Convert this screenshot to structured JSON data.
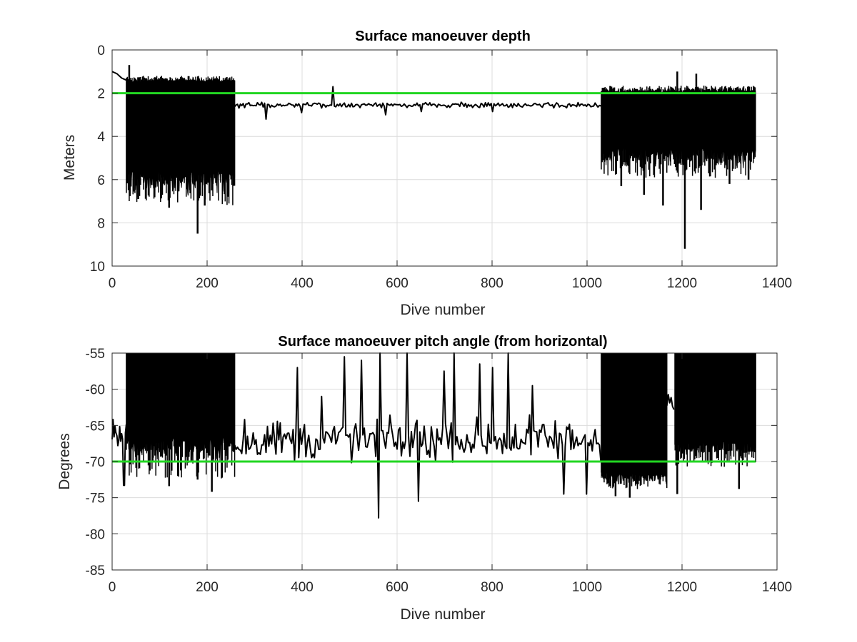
{
  "chart_data": [
    {
      "type": "line",
      "title": "Surface manoeuver depth",
      "xlabel": "Dive number",
      "ylabel": "Meters",
      "xlim": [
        0,
        1400
      ],
      "ylim": [
        0,
        10
      ],
      "y_reversed": true,
      "grid": true,
      "xticks": [
        "0",
        "200",
        "400",
        "600",
        "800",
        "1000",
        "1200",
        "1400"
      ],
      "yticks": [
        "0",
        "2",
        "4",
        "6",
        "8",
        "10"
      ],
      "reference_line": {
        "y": 2,
        "color": "#22d622"
      },
      "series_color": "#000000",
      "segments": [
        {
          "type": "smooth",
          "x": [
            0,
            10,
            20,
            30
          ],
          "y": [
            1.0,
            1.1,
            1.3,
            1.4
          ]
        },
        {
          "type": "band",
          "x_start": 30,
          "x_end": 258,
          "top": 1.5,
          "bottom": 5.5,
          "top_noise": 0.3,
          "bottom_noise": 1.3,
          "spikes": [
            [
              36,
              0.7
            ],
            [
              55,
              6.9
            ],
            [
              120,
              7.3
            ],
            [
              180,
              8.5
            ],
            [
              195,
              7.2
            ],
            [
              210,
              6.5
            ],
            [
              240,
              5.9
            ]
          ]
        },
        {
          "type": "noisy",
          "x_start": 258,
          "x_end": 1030,
          "level": 2.55,
          "noise": 0.18,
          "step": 3,
          "spikes": [
            [
              325,
              3.2
            ],
            [
              400,
              2.9
            ],
            [
              465,
              1.7
            ],
            [
              575,
              3.0
            ],
            [
              650,
              2.85
            ],
            [
              800,
              2.85
            ]
          ]
        },
        {
          "type": "band",
          "x_start": 1030,
          "x_end": 1355,
          "top": 2.0,
          "bottom": 4.5,
          "top_noise": 0.35,
          "bottom_noise": 1.1,
          "spikes": [
            [
              1072,
              6.3
            ],
            [
              1120,
              6.7
            ],
            [
              1160,
              7.2
            ],
            [
              1190,
              1.0
            ],
            [
              1206,
              9.2
            ],
            [
              1230,
              1.1
            ],
            [
              1240,
              7.4
            ],
            [
              1300,
              6.2
            ],
            [
              1340,
              6.0
            ]
          ]
        }
      ]
    },
    {
      "type": "line",
      "title": "Surface manoeuver pitch angle (from horizontal)",
      "xlabel": "Dive number",
      "ylabel": "Degrees",
      "xlim": [
        0,
        1400
      ],
      "ylim": [
        -85,
        -55
      ],
      "grid": true,
      "xticks": [
        "0",
        "200",
        "400",
        "600",
        "800",
        "1000",
        "1200",
        "1400"
      ],
      "yticks": [
        "-55",
        "-60",
        "-65",
        "-70",
        "-75",
        "-80",
        "-85"
      ],
      "reference_line": {
        "y": -70,
        "color": "#22d622"
      },
      "series_color": "#000000",
      "segments": [
        {
          "type": "noisy",
          "x_start": 0,
          "x_end": 30,
          "level": -66.0,
          "noise": 3.5,
          "step": 2,
          "spikes": [
            [
              25,
              -73.3
            ]
          ]
        },
        {
          "type": "band",
          "x_start": 30,
          "x_end": 258,
          "top": -55,
          "bottom": -66.5,
          "top_noise": 0.0,
          "bottom_noise": 4.5,
          "spikes": [
            [
              120,
              -73.4
            ],
            [
              180,
              -72.5
            ],
            [
              210,
              -74.2
            ]
          ]
        },
        {
          "type": "noisy",
          "x_start": 258,
          "x_end": 1030,
          "level": -67.0,
          "noise": 4.2,
          "step": 3,
          "spikes": [
            [
              390,
              -57.0
            ],
            [
              440,
              -61.0
            ],
            [
              490,
              -55.5
            ],
            [
              525,
              -56.0
            ],
            [
              562,
              -77.8
            ],
            [
              565,
              -55.0
            ],
            [
              620,
              -55.0
            ],
            [
              645,
              -75.5
            ],
            [
              700,
              -57.5
            ],
            [
              720,
              -55.0
            ],
            [
              775,
              -56.5
            ],
            [
              800,
              -57.0
            ],
            [
              835,
              -55.0
            ],
            [
              885,
              -59.5
            ],
            [
              950,
              -74.5
            ],
            [
              1000,
              -74.5
            ]
          ]
        },
        {
          "type": "band",
          "x_start": 1030,
          "x_end": 1168,
          "top": -55,
          "bottom": -71.5,
          "top_noise": 0.0,
          "bottom_noise": 1.8,
          "spikes": [
            [
              1060,
              -74.8
            ],
            [
              1090,
              -75.0
            ]
          ]
        },
        {
          "type": "noisy",
          "x_start": 1168,
          "x_end": 1185,
          "level": -62.0,
          "noise": 3.0,
          "step": 3,
          "spikes": []
        },
        {
          "type": "band",
          "x_start": 1185,
          "x_end": 1355,
          "top": -55,
          "bottom": -67.0,
          "top_noise": 0.0,
          "bottom_noise": 3.0,
          "spikes": [
            [
              1190,
              -74.5
            ],
            [
              1320,
              -73.8
            ]
          ]
        }
      ]
    }
  ]
}
